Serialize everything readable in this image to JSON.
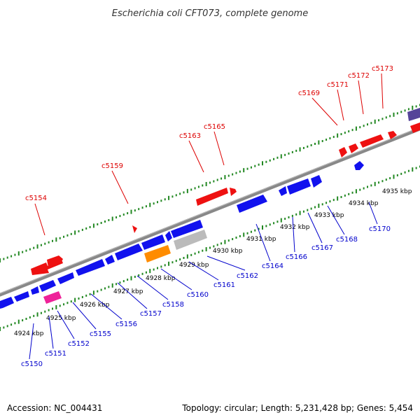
{
  "title": "Escherichia coli CFT073, complete genome",
  "footer": {
    "accession": "Accession: NC_004431",
    "info": "Topology: circular; Length: 5,231,428 bp; Genes: 5,454"
  },
  "colors": {
    "background": "#ffffff",
    "backbone": "#888888",
    "tick_green": "#228822",
    "forward_gene": "#ee1111",
    "reverse_gene": "#1111ee",
    "orange_gene": "#ff8c00",
    "gray_gene": "#bbbbbb",
    "pink_gene": "#ee2299",
    "purple_gene": "#554499",
    "forward_label": "#dd0000",
    "reverse_label": "#0000cc"
  },
  "scale_ticks": [
    "4924 kbp",
    "4925 kbp",
    "4926 kbp",
    "4927 kbp",
    "4928 kbp",
    "4929 kbp",
    "4930 kbp",
    "4931 kbp",
    "4932 kbp",
    "4933 kbp",
    "4934 kbp",
    "4935 kbp"
  ],
  "forward_labels": [
    "c5154",
    "c5159",
    "c5163",
    "c5165",
    "c5169",
    "c5171",
    "c5172",
    "c5173"
  ],
  "reverse_labels": [
    "c5150",
    "c5151",
    "c5152",
    "c5155",
    "c5156",
    "c5157",
    "c5158",
    "c5160",
    "c5161",
    "c5162",
    "c5164",
    "c5166",
    "c5167",
    "c5168",
    "c5170"
  ]
}
